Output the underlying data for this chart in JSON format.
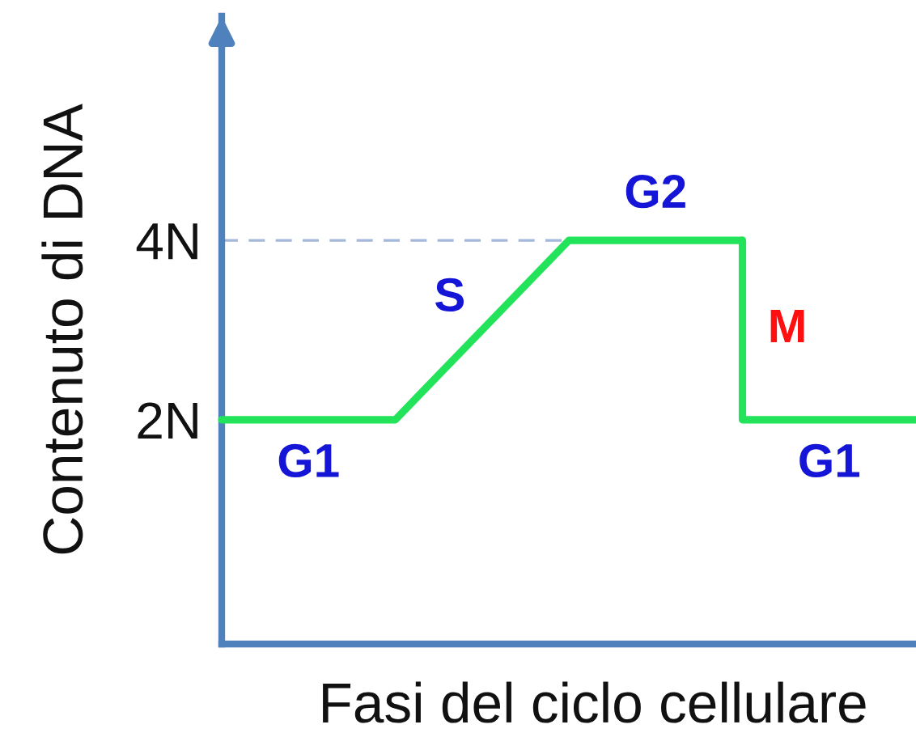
{
  "chart_data": {
    "type": "line",
    "xlabel": "Fasi del ciclo cellulare",
    "ylabel": "Contenuto di DNA",
    "categories": [
      null,
      null,
      null,
      null,
      null
    ],
    "series": [
      {
        "values": [
          2,
          2,
          4,
          4,
          null
        ],
        "color": "#22e35a"
      },
      {
        "type": "step",
        "values": [
          null,
          null,
          null,
          4,
          2
        ],
        "color": "#22e35a"
      }
    ],
    "ylim": [
      -0.5,
      6.5
    ],
    "yticks": [
      {
        "value": 2,
        "label": "2N"
      },
      {
        "value": 4,
        "label": "4N"
      }
    ],
    "tick_labels": "y",
    "ref_lines": [
      {
        "axis": "y",
        "value": 4,
        "color": "#a3b8dc",
        "line_style": "dashed"
      }
    ],
    "annotations": [
      "G1",
      "S",
      "G2",
      "M",
      "G1"
    ]
  }
}
